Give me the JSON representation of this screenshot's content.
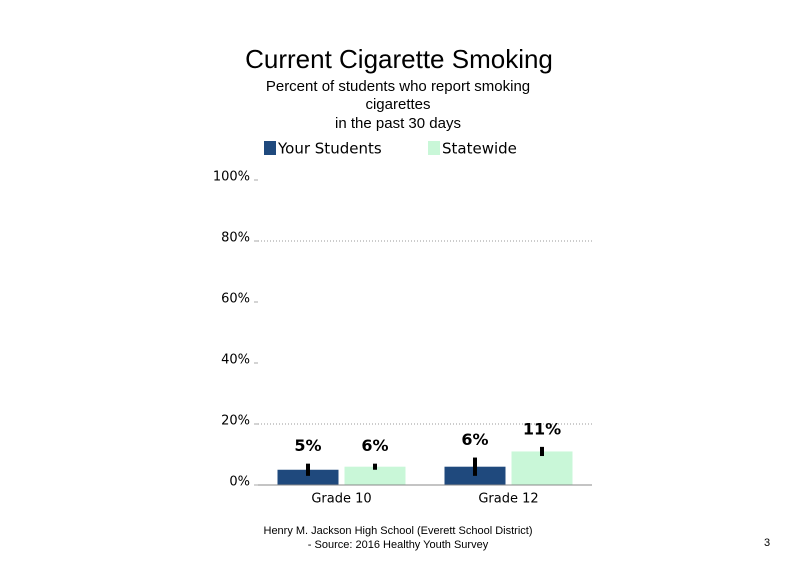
{
  "chart_data": {
    "type": "bar",
    "title": "Current Cigarette Smoking",
    "subtitle": [
      "Percent of students who report smoking",
      "cigarettes",
      "in the past 30 days"
    ],
    "categories": [
      "Grade 10",
      "Grade 12"
    ],
    "series": [
      {
        "name": "Your Students",
        "color": "#1f497d",
        "values": [
          5,
          6
        ],
        "value_labels": [
          "5%",
          "6%"
        ],
        "errors": [
          2,
          3
        ]
      },
      {
        "name": "Statewide",
        "color": "#c9f7d8",
        "values": [
          6,
          11
        ],
        "value_labels": [
          "6%",
          "11%"
        ],
        "errors": [
          1,
          1.5
        ]
      }
    ],
    "ylim": [
      0,
      100
    ],
    "yticks": [
      {
        "value": 0,
        "label": "0%"
      },
      {
        "value": 20,
        "label": "20%"
      },
      {
        "value": 40,
        "label": "40%"
      },
      {
        "value": 60,
        "label": "60%"
      },
      {
        "value": 80,
        "label": "80%"
      },
      {
        "value": 100,
        "label": "100%"
      }
    ],
    "gridlines": [
      20,
      80
    ],
    "footer": [
      "Henry M.  Jackson High  School (Everett School District)",
      "- Source: 2016 Healthy  Youth Survey"
    ],
    "page_number": "3"
  }
}
